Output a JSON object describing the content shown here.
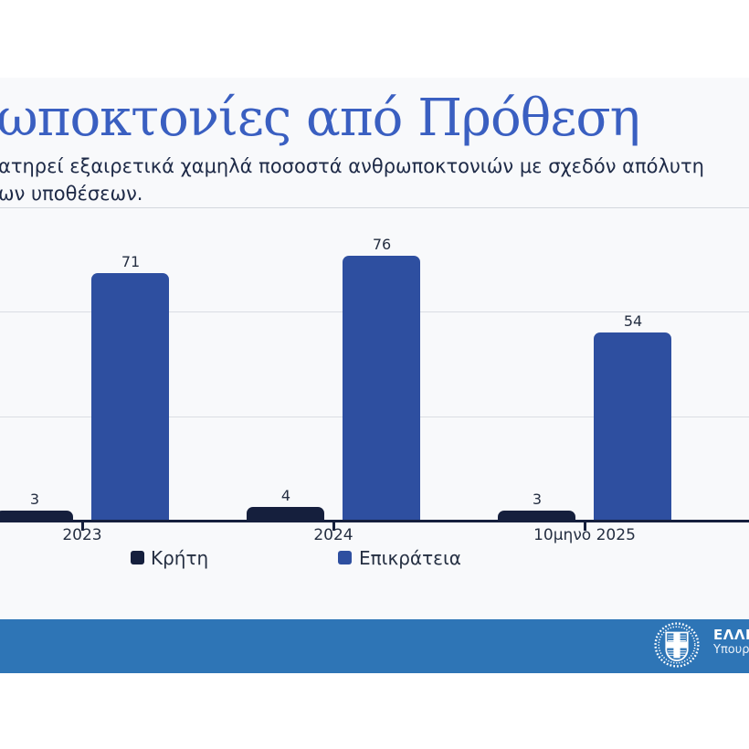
{
  "slide": {
    "title": "ωποκτονίες από Πρόθεση",
    "subtitle_line1": "ατηρεί εξαιρετικά χαμηλά ποσοστά ανθρωποκτονιών με σχεδόν απόλυτη",
    "subtitle_line2": "ων υποθέσεων."
  },
  "chart_data": {
    "type": "bar",
    "categories": [
      "2023",
      "2024",
      "10μηνο 2025"
    ],
    "series": [
      {
        "name": "Κρήτη",
        "color": "#151f3d",
        "values": [
          3,
          4,
          3
        ]
      },
      {
        "name": "Επικράτεια",
        "color": "#2e4fa0",
        "values": [
          71,
          76,
          54
        ]
      }
    ],
    "title": "",
    "xlabel": "",
    "ylabel": "",
    "ylim": [
      0,
      90
    ],
    "gridline_values": [
      30,
      60
    ],
    "grid": true,
    "legend_position": "bottom",
    "value_labels": true
  },
  "footer": {
    "org_text": "ΕΛΛΗ",
    "ministry_text": "Υπουρ",
    "band_color": "#2e75b6",
    "emblem": "greek-government-emblem"
  },
  "colors": {
    "title_blue": "#3a5fc1",
    "body_text": "#252f42",
    "card_bg": "#f8f9fb",
    "gridline": "#dadde3",
    "axis": "#151f3d"
  }
}
